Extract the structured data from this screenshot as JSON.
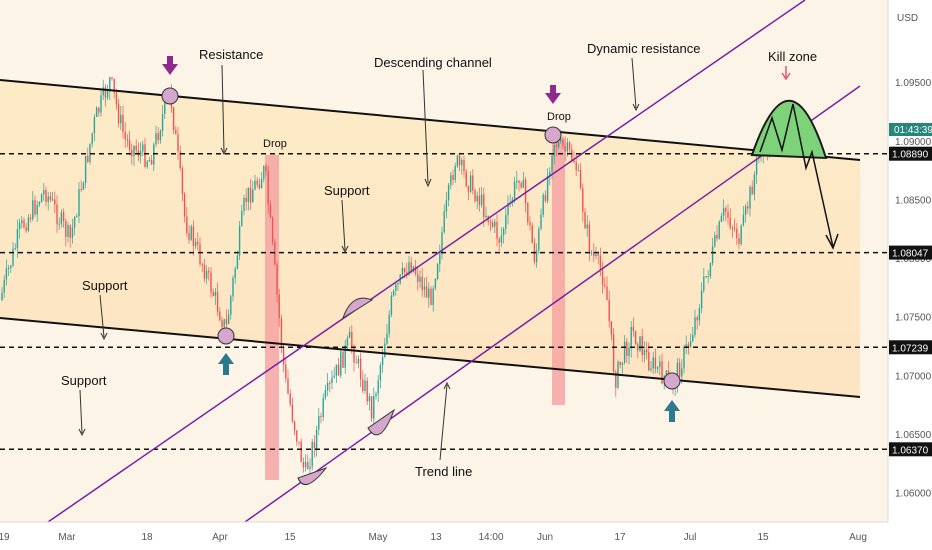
{
  "chart_data": {
    "type": "candlestick",
    "currency": "USD",
    "current_price": "1.08890",
    "countdown": "01:43:39",
    "price_ticks": [
      "1.09500",
      "1.09000",
      "1.08500",
      "1.08000",
      "1.07500",
      "1.07000",
      "1.06500",
      "1.06000"
    ],
    "ylim": [
      1.0575,
      1.102
    ],
    "x_ticks": [
      "19",
      "Mar",
      "18",
      "Apr",
      "15",
      "May",
      "13",
      "14:00",
      "Jun",
      "17",
      "Jul",
      "15",
      "Aug"
    ],
    "levels": [
      {
        "label": "1.08890",
        "value": 1.0889
      },
      {
        "label": "1.08047",
        "value": 1.08047
      },
      {
        "label": "1.07239",
        "value": 1.07239
      },
      {
        "label": "1.06370",
        "value": 1.0637
      }
    ],
    "annotations": [
      "Resistance",
      "Descending channel",
      "Dynamic resistance",
      "Kill zone",
      "Support",
      "Support",
      "Support",
      "Drop",
      "Drop",
      "Trend line"
    ],
    "colors": {
      "up": "#26a69a",
      "down": "#ef5350",
      "channel": "#fde9c8",
      "line": "#000000",
      "trend": "#7b1fa2",
      "kill": "#7ed27a",
      "drop": "#f28f8f"
    }
  }
}
